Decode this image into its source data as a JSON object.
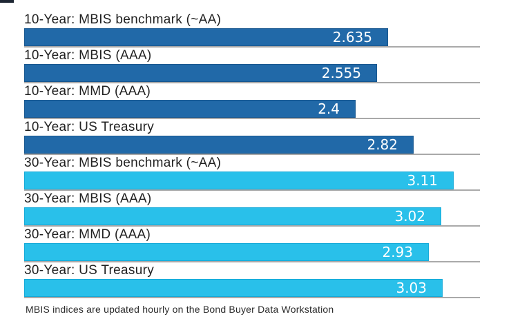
{
  "chart_data": {
    "type": "bar",
    "orientation": "horizontal",
    "categories": [
      "10-Year: MBIS benchmark (~AA)",
      "10-Year: MBIS (AAA)",
      "10-Year: MMD (AAA)",
      "10-Year: US Treasury",
      "30-Year: MBIS benchmark (~AA)",
      "30-Year: MBIS (AAA)",
      "30-Year: MMD (AAA)",
      "30-Year: US Treasury"
    ],
    "items": [
      {
        "label": "10-Year: MBIS benchmark (~AA)",
        "value": 2.635,
        "display": "2.635",
        "group": "10-year"
      },
      {
        "label": "10-Year: MBIS (AAA)",
        "value": 2.555,
        "display": "2.555",
        "group": "10-year"
      },
      {
        "label": "10-Year: MMD (AAA)",
        "value": 2.4,
        "display": "2.4",
        "group": "10-year"
      },
      {
        "label": "10-Year: US Treasury",
        "value": 2.82,
        "display": "2.82",
        "group": "10-year"
      },
      {
        "label": "30-Year: MBIS benchmark (~AA)",
        "value": 3.11,
        "display": "3.11",
        "group": "30-year"
      },
      {
        "label": "30-Year: MBIS (AAA)",
        "value": 3.02,
        "display": "3.02",
        "group": "30-year"
      },
      {
        "label": "30-Year: MMD (AAA)",
        "value": 2.93,
        "display": "2.93",
        "group": "30-year"
      },
      {
        "label": "30-Year: US Treasury",
        "value": 3.03,
        "display": "3.03",
        "group": "30-year"
      }
    ],
    "groups": {
      "10-year": {
        "fill": "#2169A8",
        "border": "#18578F"
      },
      "30-year": {
        "fill": "#29C0EA",
        "border": "#14A9D8"
      }
    },
    "xlim": [
      0,
      3.3
    ],
    "grid": "category-baselines",
    "gridline_color": "#A9A9A9",
    "value_label_color": "#FFFFFF",
    "value_label_position": "inside-end",
    "legend": "none",
    "title": "",
    "xlabel": "",
    "ylabel": ""
  },
  "footer": {
    "note": "MBIS indices are updated hourly on the Bond Buyer Data Workstation"
  }
}
